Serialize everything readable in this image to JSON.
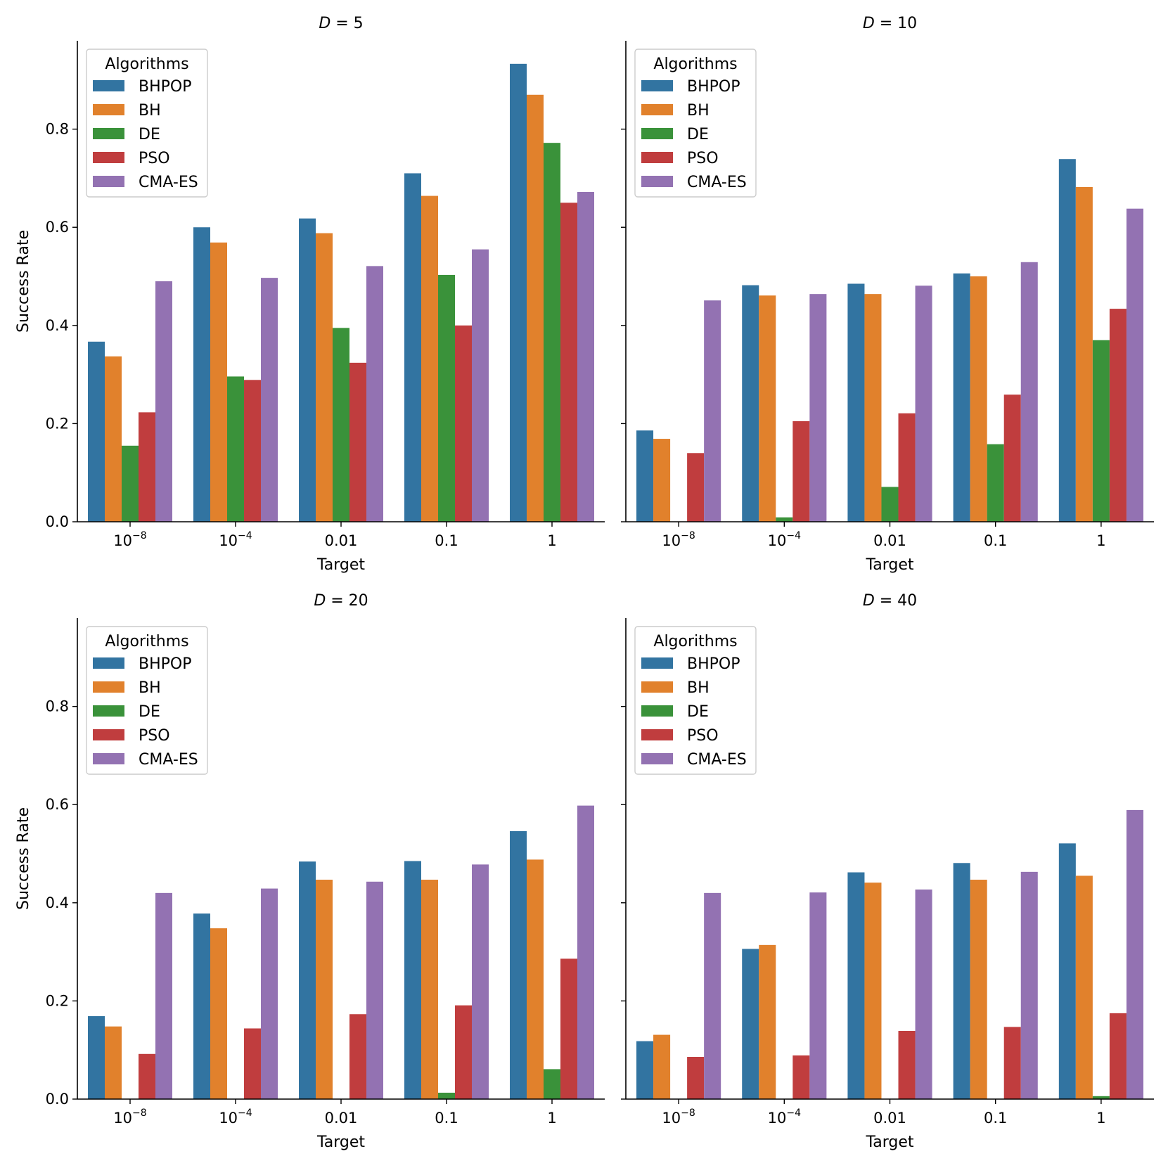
{
  "chart_data": [
    {
      "type": "bar",
      "title": "D = 5",
      "title_var": "D",
      "title_value": "5",
      "xlabel": "Target",
      "ylabel": "Success Rate",
      "categories": [
        "10^-8",
        "10^-4",
        "0.01",
        "0.1",
        "1"
      ],
      "category_labels": [
        {
          "base": "10",
          "exp": "−8"
        },
        {
          "base": "10",
          "exp": "−4"
        },
        {
          "base": "0.01",
          "exp": ""
        },
        {
          "base": "0.1",
          "exp": ""
        },
        {
          "base": "1",
          "exp": ""
        }
      ],
      "ylim": [
        0,
        0.98
      ],
      "yticks": [
        "0.0",
        "0.2",
        "0.4",
        "0.6",
        "0.8"
      ],
      "legend": {
        "title": "Algorithms",
        "position": "top-left"
      },
      "series": [
        {
          "name": "BHPOP",
          "color": "#3274a1",
          "values": [
            0.367,
            0.6,
            0.618,
            0.71,
            0.933
          ]
        },
        {
          "name": "BH",
          "color": "#e1812c",
          "values": [
            0.337,
            0.569,
            0.588,
            0.664,
            0.87
          ]
        },
        {
          "name": "DE",
          "color": "#3a923a",
          "values": [
            0.155,
            0.296,
            0.395,
            0.503,
            0.772
          ]
        },
        {
          "name": "PSO",
          "color": "#c03d3e",
          "values": [
            0.223,
            0.289,
            0.324,
            0.4,
            0.65
          ]
        },
        {
          "name": "CMA-ES",
          "color": "#9372b2",
          "values": [
            0.49,
            0.497,
            0.521,
            0.555,
            0.672
          ]
        }
      ],
      "show_ylabel": true,
      "show_yticklabels": true
    },
    {
      "type": "bar",
      "title": "D = 10",
      "title_var": "D",
      "title_value": "10",
      "xlabel": "Target",
      "ylabel": "",
      "categories": [
        "10^-8",
        "10^-4",
        "0.01",
        "0.1",
        "1"
      ],
      "category_labels": [
        {
          "base": "10",
          "exp": "−8"
        },
        {
          "base": "10",
          "exp": "−4"
        },
        {
          "base": "0.01",
          "exp": ""
        },
        {
          "base": "0.1",
          "exp": ""
        },
        {
          "base": "1",
          "exp": ""
        }
      ],
      "ylim": [
        0,
        0.98
      ],
      "yticks": [
        "0.0",
        "0.2",
        "0.4",
        "0.6",
        "0.8"
      ],
      "legend": {
        "title": "Algorithms",
        "position": "top-left"
      },
      "series": [
        {
          "name": "BHPOP",
          "color": "#3274a1",
          "values": [
            0.186,
            0.482,
            0.485,
            0.506,
            0.739
          ]
        },
        {
          "name": "BH",
          "color": "#e1812c",
          "values": [
            0.169,
            0.461,
            0.464,
            0.5,
            0.682
          ]
        },
        {
          "name": "DE",
          "color": "#3a923a",
          "values": [
            0.0,
            0.009,
            0.071,
            0.158,
            0.37
          ]
        },
        {
          "name": "PSO",
          "color": "#c03d3e",
          "values": [
            0.14,
            0.205,
            0.221,
            0.259,
            0.434
          ]
        },
        {
          "name": "CMA-ES",
          "color": "#9372b2",
          "values": [
            0.451,
            0.464,
            0.481,
            0.529,
            0.638
          ]
        }
      ],
      "show_ylabel": false,
      "show_yticklabels": false
    },
    {
      "type": "bar",
      "title": "D = 20",
      "title_var": "D",
      "title_value": "20",
      "xlabel": "Target",
      "ylabel": "Success Rate",
      "categories": [
        "10^-8",
        "10^-4",
        "0.01",
        "0.1",
        "1"
      ],
      "category_labels": [
        {
          "base": "10",
          "exp": "−8"
        },
        {
          "base": "10",
          "exp": "−4"
        },
        {
          "base": "0.01",
          "exp": ""
        },
        {
          "base": "0.1",
          "exp": ""
        },
        {
          "base": "1",
          "exp": ""
        }
      ],
      "ylim": [
        0,
        0.98
      ],
      "yticks": [
        "0.0",
        "0.2",
        "0.4",
        "0.6",
        "0.8"
      ],
      "legend": {
        "title": "Algorithms",
        "position": "top-left"
      },
      "series": [
        {
          "name": "BHPOP",
          "color": "#3274a1",
          "values": [
            0.169,
            0.378,
            0.484,
            0.485,
            0.546
          ]
        },
        {
          "name": "BH",
          "color": "#e1812c",
          "values": [
            0.148,
            0.348,
            0.447,
            0.447,
            0.488
          ]
        },
        {
          "name": "DE",
          "color": "#3a923a",
          "values": [
            0.0,
            0.0,
            0.0,
            0.013,
            0.061
          ]
        },
        {
          "name": "PSO",
          "color": "#c03d3e",
          "values": [
            0.092,
            0.144,
            0.173,
            0.191,
            0.286
          ]
        },
        {
          "name": "CMA-ES",
          "color": "#9372b2",
          "values": [
            0.42,
            0.429,
            0.443,
            0.478,
            0.598
          ]
        }
      ],
      "show_ylabel": true,
      "show_yticklabels": true
    },
    {
      "type": "bar",
      "title": "D = 40",
      "title_var": "D",
      "title_value": "40",
      "xlabel": "Target",
      "ylabel": "",
      "categories": [
        "10^-8",
        "10^-4",
        "0.01",
        "0.1",
        "1"
      ],
      "category_labels": [
        {
          "base": "10",
          "exp": "−8"
        },
        {
          "base": "10",
          "exp": "−4"
        },
        {
          "base": "0.01",
          "exp": ""
        },
        {
          "base": "0.1",
          "exp": ""
        },
        {
          "base": "1",
          "exp": ""
        }
      ],
      "ylim": [
        0,
        0.98
      ],
      "yticks": [
        "0.0",
        "0.2",
        "0.4",
        "0.6",
        "0.8"
      ],
      "legend": {
        "title": "Algorithms",
        "position": "top-left"
      },
      "series": [
        {
          "name": "BHPOP",
          "color": "#3274a1",
          "values": [
            0.118,
            0.306,
            0.462,
            0.481,
            0.521
          ]
        },
        {
          "name": "BH",
          "color": "#e1812c",
          "values": [
            0.131,
            0.314,
            0.441,
            0.447,
            0.455
          ]
        },
        {
          "name": "DE",
          "color": "#3a923a",
          "values": [
            0.0,
            0.0,
            0.0,
            0.0,
            0.006
          ]
        },
        {
          "name": "PSO",
          "color": "#c03d3e",
          "values": [
            0.086,
            0.089,
            0.139,
            0.147,
            0.175
          ]
        },
        {
          "name": "CMA-ES",
          "color": "#9372b2",
          "values": [
            0.42,
            0.421,
            0.427,
            0.463,
            0.589
          ]
        }
      ],
      "show_ylabel": false,
      "show_yticklabels": false
    }
  ]
}
